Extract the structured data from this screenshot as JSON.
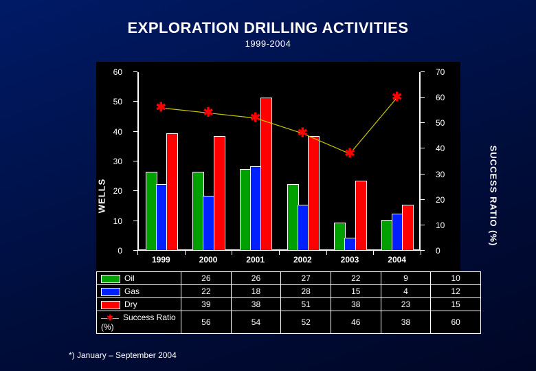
{
  "title": "EXPLORATION DRILLING ACTIVITIES",
  "subtitle": "1999-2004",
  "footnote": "*) January – September 2004",
  "chart": {
    "type": "bar+line",
    "background_color": "#000000",
    "page_background": "#001a66",
    "categories": [
      "1999",
      "2000",
      "2001",
      "2002",
      "2003",
      "2004"
    ],
    "y_left": {
      "label": "WELLS",
      "min": 0,
      "max": 60,
      "step": 10,
      "color": "#ffffff"
    },
    "y_right": {
      "label": "SUCCESS RATIO (%)",
      "min": 0,
      "max": 70,
      "step": 10,
      "color": "#ffffff"
    },
    "series": {
      "oil": {
        "label": "Oil",
        "color": "#00a000",
        "values": [
          26,
          26,
          27,
          22,
          9,
          10
        ]
      },
      "gas": {
        "label": "Gas",
        "color": "#0020ff",
        "values": [
          22,
          18,
          28,
          15,
          4,
          12
        ]
      },
      "dry": {
        "label": "Dry",
        "color": "#ff0000",
        "values": [
          39,
          38,
          51,
          38,
          23,
          15
        ]
      },
      "ratio": {
        "label": "Success Ratio (%)",
        "line_color": "#c9c900",
        "marker_color": "#ff0000",
        "marker": "asterisk",
        "values": [
          56,
          54,
          52,
          46,
          38,
          60
        ]
      }
    },
    "bar_width_ratio": 0.22,
    "axis_color": "#ffffff",
    "label_fontsize": 12,
    "title_fontsize": 22
  },
  "table": {
    "columns": [
      "",
      "1999",
      "2000",
      "2001",
      "2002",
      "2003",
      "2004"
    ],
    "rows": [
      [
        "Oil",
        "26",
        "26",
        "27",
        "22",
        "9",
        "10"
      ],
      [
        "Gas",
        "22",
        "18",
        "28",
        "15",
        "4",
        "12"
      ],
      [
        "Dry",
        "39",
        "38",
        "51",
        "38",
        "23",
        "15"
      ],
      [
        "Success Ratio (%)",
        "56",
        "54",
        "52",
        "46",
        "38",
        "60"
      ]
    ]
  }
}
